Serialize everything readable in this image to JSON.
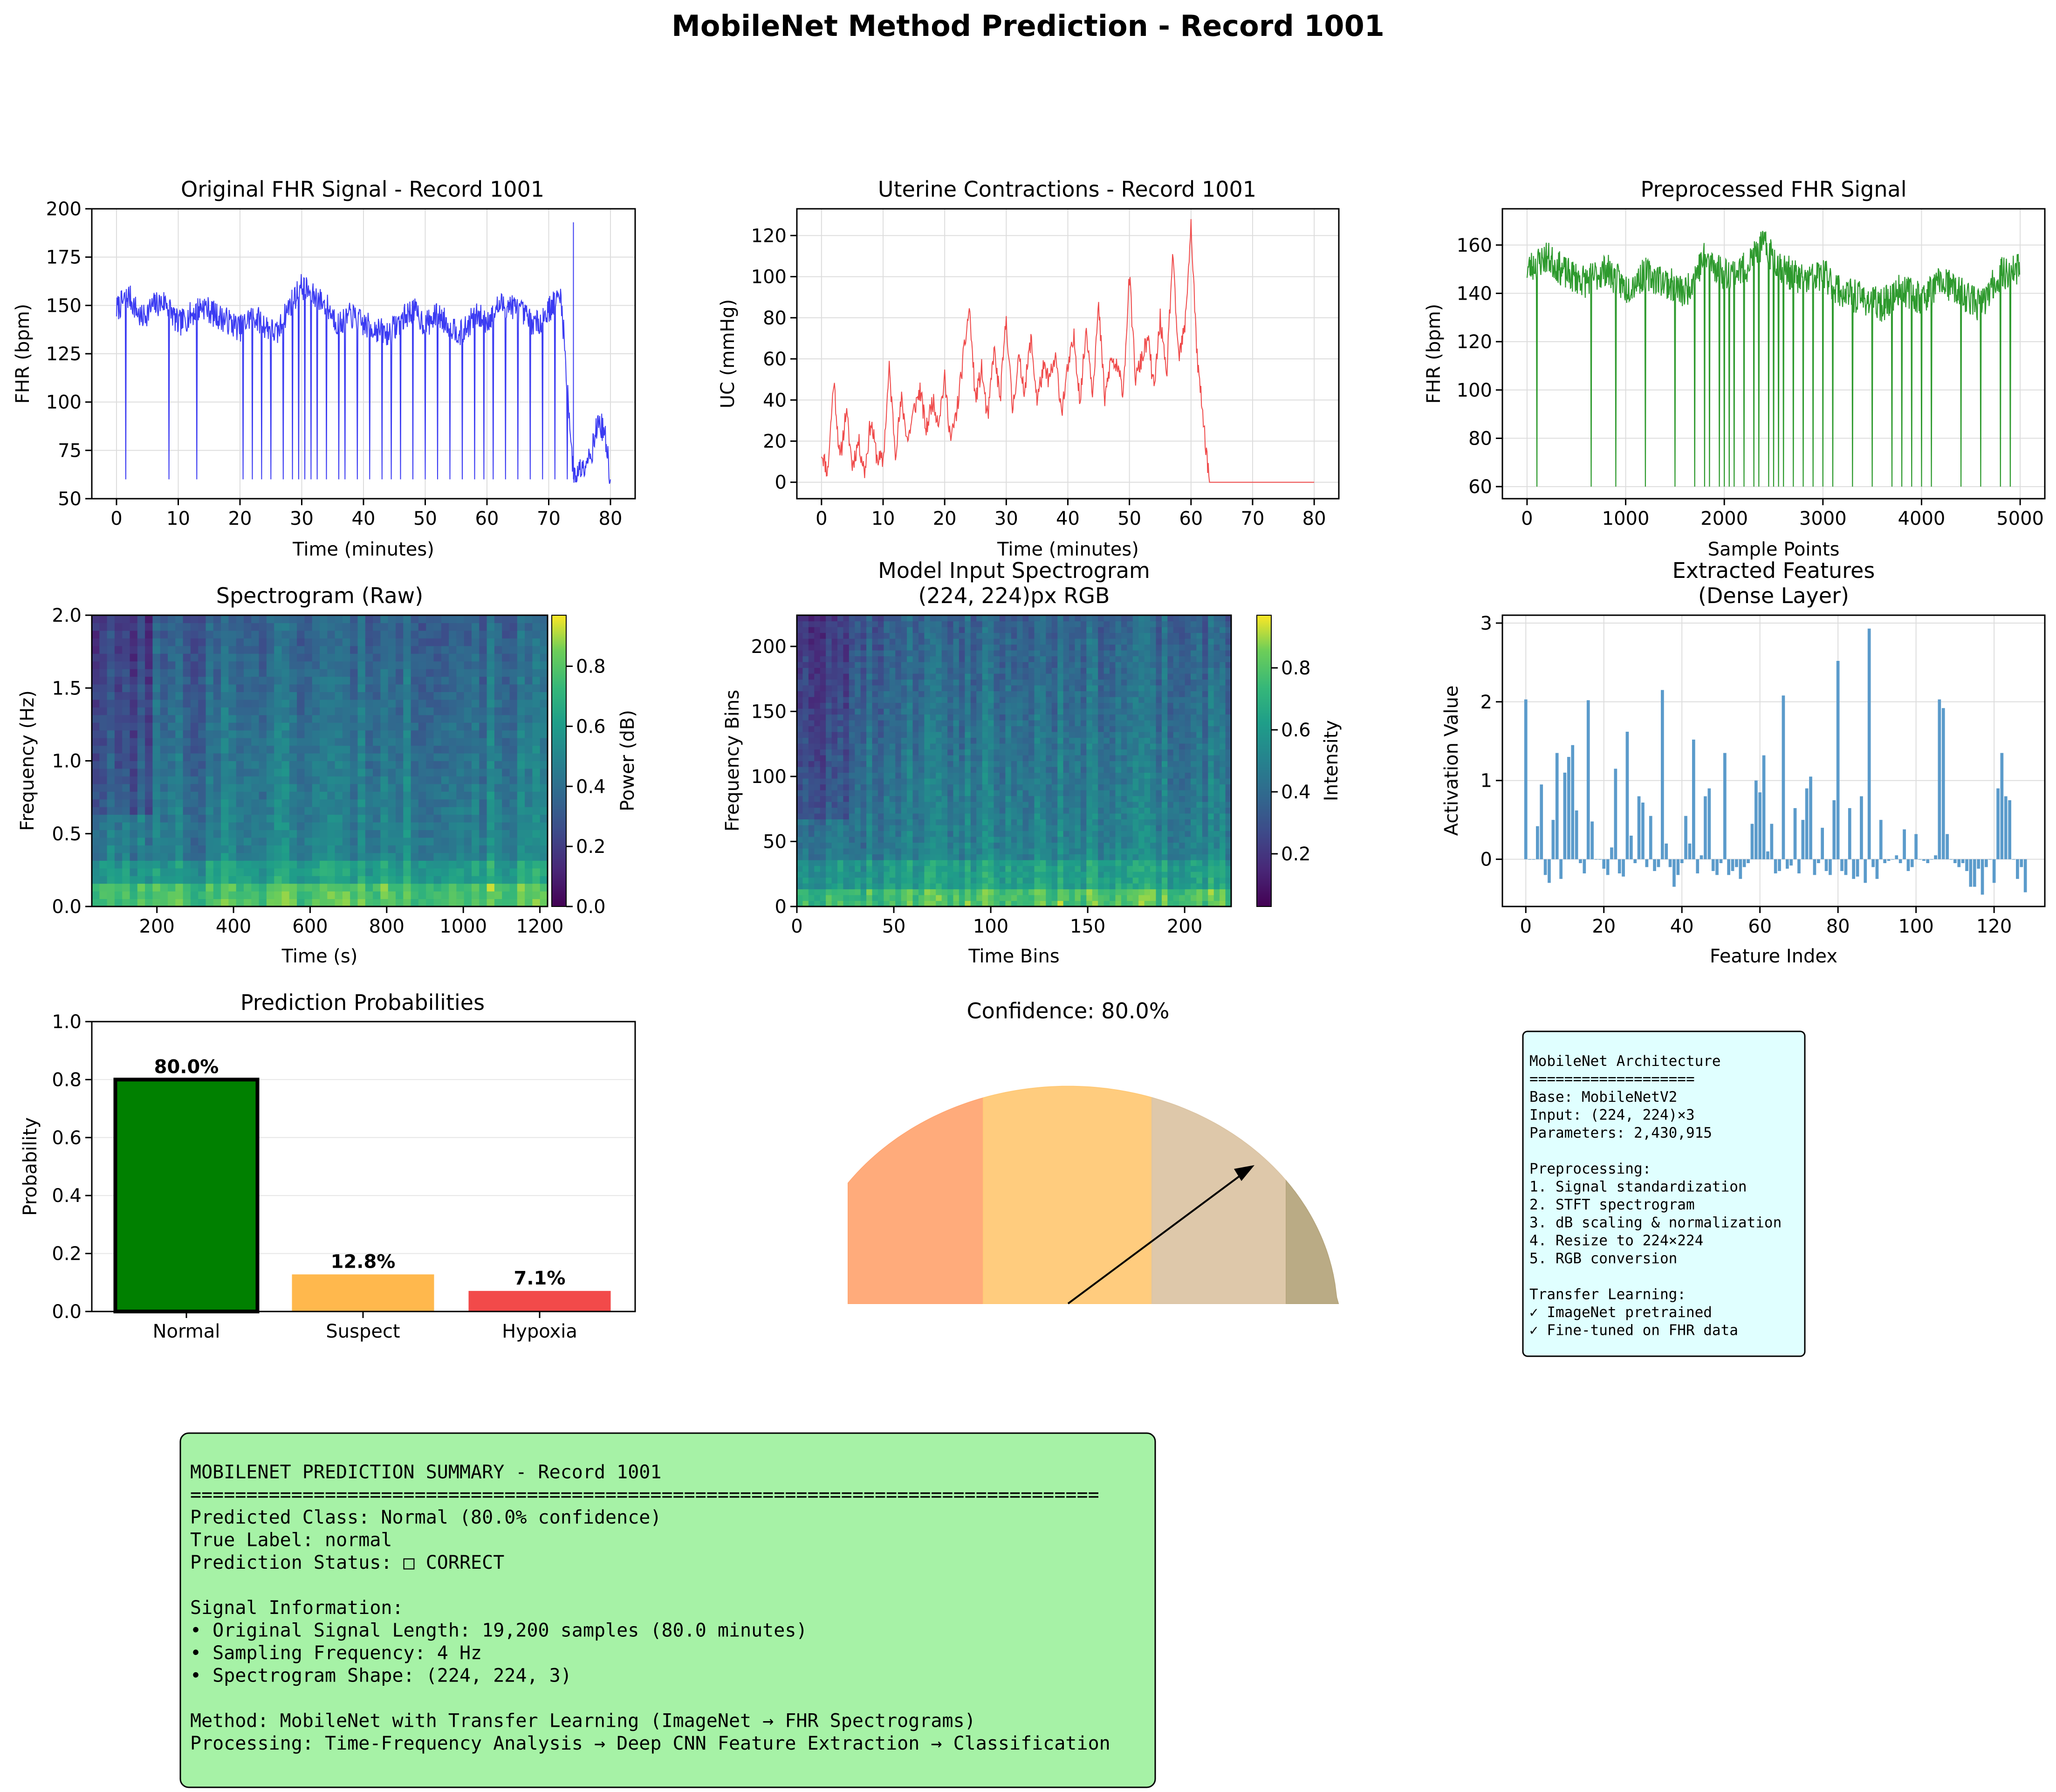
{
  "suptitle": "MobileNet Method Prediction - Record 1001",
  "colors": {
    "fhr": "#3b3bf2",
    "uc": "#ef4a4a",
    "pre": "#2e9a2e",
    "feat": "#5b9bcb",
    "normal": "#008000",
    "suspect": "#ffb84d",
    "hypoxia": "#f24a4a"
  },
  "panels": {
    "fhr": {
      "title": "Original FHR Signal - Record 1001",
      "xlabel": "Time (minutes)",
      "ylabel": "FHR (bpm)",
      "xticks": [
        "0",
        "10",
        "20",
        "30",
        "40",
        "50",
        "60",
        "70",
        "80"
      ],
      "yticks": [
        "50",
        "75",
        "100",
        "125",
        "150",
        "175",
        "200"
      ]
    },
    "uc": {
      "title": "Uterine Contractions - Record 1001",
      "xlabel": "Time (minutes)",
      "ylabel": "UC (mmHg)",
      "xticks": [
        "0",
        "10",
        "20",
        "30",
        "40",
        "50",
        "60",
        "70",
        "80"
      ],
      "yticks": [
        "0",
        "20",
        "40",
        "60",
        "80",
        "100",
        "120"
      ]
    },
    "pre": {
      "title": "Preprocessed FHR Signal",
      "xlabel": "Sample Points",
      "ylabel": "FHR (bpm)",
      "xticks": [
        "0",
        "1000",
        "2000",
        "3000",
        "4000",
        "5000"
      ],
      "yticks": [
        "60",
        "80",
        "100",
        "120",
        "140",
        "160"
      ]
    },
    "spec_raw": {
      "title": "Spectrogram (Raw)",
      "xlabel": "Time (s)",
      "ylabel": "Frequency (Hz)",
      "cbar_label": "Power (dB)",
      "xticks": [
        "200",
        "400",
        "600",
        "800",
        "1000",
        "1200"
      ],
      "yticks": [
        "0.0",
        "0.5",
        "1.0",
        "1.5",
        "2.0"
      ],
      "cbar_ticks": [
        "0.0",
        "0.2",
        "0.4",
        "0.6",
        "0.8"
      ]
    },
    "spec_in": {
      "title_line1": "Model Input Spectrogram",
      "title_line2": "(224, 224)px RGB",
      "xlabel": "Time Bins",
      "ylabel": "Frequency Bins",
      "cbar_label": "Intensity",
      "xticks": [
        "0",
        "50",
        "100",
        "150",
        "200"
      ],
      "yticks": [
        "0",
        "50",
        "100",
        "150",
        "200"
      ],
      "cbar_ticks": [
        "0.2",
        "0.4",
        "0.6",
        "0.8"
      ]
    },
    "feat": {
      "title_line1": "Extracted Features",
      "title_line2": "(Dense Layer)",
      "xlabel": "Feature Index",
      "ylabel": "Activation Value",
      "xticks": [
        "0",
        "20",
        "40",
        "60",
        "80",
        "100",
        "120"
      ],
      "yticks": [
        "0",
        "1",
        "2",
        "3"
      ]
    },
    "prob": {
      "title": "Prediction Probabilities",
      "ylabel": "Probability",
      "yticks": [
        "0.0",
        "0.2",
        "0.4",
        "0.6",
        "0.8",
        "1.0"
      ]
    },
    "gauge": {
      "title": "Confidence: 80.0%"
    }
  },
  "chart_data": [
    {
      "type": "line",
      "name": "fhr",
      "title": "Original FHR Signal - Record 1001",
      "xlabel": "Time (minutes)",
      "ylabel": "FHR (bpm)",
      "xlim": [
        -4,
        84
      ],
      "ylim": [
        50,
        200
      ],
      "grid": true,
      "x": [
        0,
        2,
        4,
        6,
        8,
        10,
        12,
        14,
        16,
        18,
        20,
        22,
        24,
        26,
        28,
        30,
        32,
        34,
        36,
        38,
        40,
        42,
        44,
        46,
        48,
        50,
        52,
        54,
        56,
        58,
        60,
        62,
        64,
        66,
        68,
        70,
        72,
        74,
        75,
        77,
        78,
        79,
        80
      ],
      "y": [
        148,
        155,
        143,
        150,
        152,
        140,
        145,
        150,
        145,
        142,
        138,
        145,
        140,
        135,
        150,
        160,
        155,
        150,
        140,
        145,
        140,
        138,
        135,
        142,
        148,
        140,
        145,
        140,
        135,
        145,
        142,
        150,
        150,
        145,
        140,
        148,
        155,
        62,
        65,
        75,
        90,
        85,
        60
      ],
      "dropouts_min": [
        1.5,
        8.5,
        13,
        20.5,
        22,
        23.5,
        25,
        27,
        28.5,
        29.5,
        30.5,
        31.5,
        32.5,
        34,
        36,
        37,
        39,
        41,
        43,
        44.5,
        46,
        48,
        50,
        52,
        54,
        56,
        58,
        59.5,
        61,
        63,
        65,
        67,
        69,
        71,
        73
      ]
    },
    {
      "type": "line",
      "name": "uc",
      "title": "Uterine Contractions - Record 1001",
      "xlabel": "Time (minutes)",
      "ylabel": "UC (mmHg)",
      "xlim": [
        -4,
        84
      ],
      "ylim": [
        -8,
        133
      ],
      "grid": true,
      "x": [
        0,
        1,
        2,
        3,
        4,
        5,
        6,
        7,
        8,
        9,
        10,
        11,
        12,
        13,
        14,
        15,
        16,
        17,
        18,
        19,
        20,
        21,
        22,
        23,
        24,
        25,
        26,
        27,
        28,
        29,
        30,
        31,
        32,
        33,
        34,
        35,
        36,
        37,
        38,
        39,
        40,
        41,
        42,
        43,
        44,
        45,
        46,
        47,
        48,
        49,
        50,
        51,
        52,
        53,
        54,
        55,
        56,
        57,
        58,
        59,
        60,
        61,
        62,
        63,
        70,
        80
      ],
      "y": [
        15,
        5,
        50,
        10,
        35,
        8,
        20,
        5,
        30,
        12,
        10,
        55,
        15,
        40,
        20,
        35,
        45,
        25,
        40,
        30,
        50,
        20,
        35,
        60,
        85,
        40,
        55,
        30,
        65,
        40,
        80,
        35,
        60,
        45,
        70,
        40,
        55,
        50,
        60,
        35,
        55,
        70,
        40,
        75,
        45,
        85,
        40,
        60,
        55,
        45,
        100,
        50,
        60,
        70,
        45,
        80,
        50,
        110,
        60,
        75,
        125,
        60,
        30,
        0,
        0,
        0
      ]
    },
    {
      "type": "line",
      "name": "pre",
      "title": "Preprocessed FHR Signal",
      "xlabel": "Sample Points",
      "ylabel": "FHR (bpm)",
      "xlim": [
        -250,
        5250
      ],
      "ylim": [
        55,
        175
      ],
      "grid": true,
      "x": [
        0,
        200,
        400,
        600,
        800,
        1000,
        1200,
        1400,
        1600,
        1800,
        2000,
        2200,
        2400,
        2600,
        2800,
        3000,
        3200,
        3400,
        3600,
        3800,
        4000,
        4200,
        4400,
        4600,
        4800,
        5000
      ],
      "y": [
        150,
        155,
        148,
        145,
        150,
        142,
        148,
        145,
        140,
        155,
        148,
        150,
        160,
        150,
        145,
        148,
        140,
        138,
        135,
        142,
        138,
        145,
        140,
        135,
        148,
        150
      ],
      "dropouts": [
        100,
        650,
        900,
        1200,
        1500,
        1700,
        1800,
        1850,
        1950,
        2000,
        2050,
        2100,
        2200,
        2300,
        2350,
        2450,
        2500,
        2550,
        2600,
        2700,
        2800,
        2900,
        3000,
        3100,
        3300,
        3500,
        3700,
        3800,
        3900,
        4000,
        4100,
        4400,
        4600,
        4800,
        4900
      ]
    },
    {
      "type": "heatmap",
      "name": "spec_raw",
      "title": "Spectrogram (Raw)",
      "xlabel": "Time (s)",
      "ylabel": "Frequency (Hz)",
      "xlim": [
        30,
        1220
      ],
      "ylim": [
        0,
        2
      ],
      "clim": [
        0,
        0.97
      ],
      "colorbar": "Power (dB)"
    },
    {
      "type": "heatmap",
      "name": "spec_in",
      "title": "Model Input Spectrogram (224, 224)px RGB",
      "xlabel": "Time Bins",
      "ylabel": "Frequency Bins",
      "xlim": [
        0,
        224
      ],
      "ylim": [
        0,
        224
      ],
      "clim": [
        0.03,
        0.97
      ],
      "colorbar": "Intensity"
    },
    {
      "type": "bar",
      "name": "feat",
      "title": "Extracted Features (Dense Layer)",
      "xlabel": "Feature Index",
      "ylabel": "Activation Value",
      "xlim": [
        -6,
        133
      ],
      "ylim": [
        -0.6,
        3.1
      ],
      "grid": true,
      "values": [
        2.03,
        0,
        0,
        0.42,
        0.95,
        -0.2,
        -0.3,
        0.5,
        1.35,
        -0.25,
        1.1,
        1.3,
        1.45,
        0.62,
        -0.05,
        -0.18,
        2.02,
        0.48,
        0,
        0,
        -0.12,
        -0.2,
        0.15,
        1.15,
        -0.18,
        -0.22,
        1.62,
        0.3,
        -0.05,
        0.8,
        0.72,
        -0.1,
        0.55,
        -0.15,
        -0.1,
        2.15,
        0.2,
        -0.1,
        -0.35,
        -0.2,
        -0.05,
        0.55,
        0.2,
        1.52,
        -0.18,
        0.05,
        0.8,
        0.9,
        -0.15,
        -0.2,
        -0.05,
        1.35,
        -0.2,
        -0.15,
        -0.1,
        -0.25,
        -0.1,
        -0.05,
        0.45,
        1.0,
        0.85,
        1.32,
        0.1,
        0.45,
        -0.18,
        -0.15,
        2.08,
        -0.12,
        -0.08,
        0.65,
        -0.18,
        0.5,
        0.9,
        1.05,
        -0.2,
        -0.05,
        0.4,
        -0.15,
        -0.2,
        0.75,
        2.52,
        -0.15,
        -0.2,
        0.65,
        -0.25,
        -0.22,
        0.8,
        -0.3,
        2.93,
        -0.1,
        -0.25,
        0.5,
        -0.05,
        -0.02,
        0,
        0.05,
        -0.05,
        0.38,
        -0.15,
        -0.1,
        0.32,
        0,
        -0.02,
        -0.05,
        0,
        0.05,
        2.03,
        1.92,
        0.32,
        0,
        -0.05,
        -0.1,
        -0.05,
        -0.15,
        -0.35,
        -0.35,
        -0.12,
        -0.45,
        -0.1,
        0,
        -0.3,
        0.9,
        1.35,
        0.8,
        0.75,
        0,
        -0.25,
        -0.1,
        -0.42
      ]
    },
    {
      "type": "bar",
      "name": "prob",
      "title": "Prediction Probabilities",
      "ylabel": "Probability",
      "ylim": [
        0,
        1
      ],
      "grid": true,
      "categories": [
        "Normal",
        "Suspect",
        "Hypoxia"
      ],
      "values": [
        0.8,
        0.128,
        0.071
      ],
      "labels": [
        "80.0%",
        "12.8%",
        "7.1%"
      ]
    },
    {
      "type": "gauge",
      "name": "gauge",
      "title": "Confidence: 80.0%",
      "value": 0.8,
      "zones": [
        {
          "color": "#ffa774"
        },
        {
          "color": "#ffc977"
        },
        {
          "color": "#dcc5a5"
        },
        {
          "color": "#b6a67e"
        }
      ]
    }
  ],
  "arch_box": {
    "lines": [
      "MobileNet Architecture",
      "===================",
      "Base: MobileNetV2",
      "Input: (224, 224)×3",
      "Parameters: 2,430,915",
      "",
      "Preprocessing:",
      "1. Signal standardization",
      "2. STFT spectrogram",
      "3. dB scaling & normalization",
      "4. Resize to 224×224",
      "5. RGB conversion",
      "",
      "Transfer Learning:",
      "✓ ImageNet pretrained",
      "✓ Fine-tuned on FHR data"
    ]
  },
  "summary_box": {
    "lines": [
      "MOBILENET PREDICTION SUMMARY - Record 1001",
      "=================================================================================",
      "Predicted Class: Normal (80.0% confidence)",
      "True Label: normal",
      "Prediction Status: □ CORRECT",
      "",
      "Signal Information:",
      "• Original Signal Length: 19,200 samples (80.0 minutes)",
      "• Sampling Frequency: 4 Hz",
      "• Spectrogram Shape: (224, 224, 3)",
      "",
      "Method: MobileNet with Transfer Learning (ImageNet → FHR Spectrograms)",
      "Processing: Time-Frequency Analysis → Deep CNN Feature Extraction → Classification"
    ]
  }
}
